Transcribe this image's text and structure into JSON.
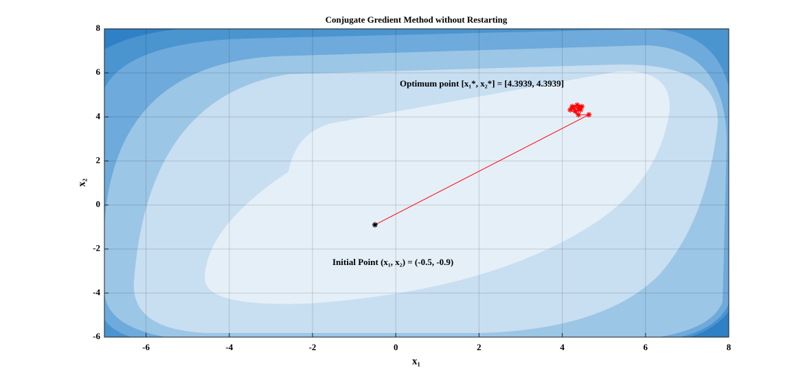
{
  "chart_data": {
    "type": "line",
    "title": "Conjugate Gredient Method without Restarting",
    "xlabel": "x₁",
    "ylabel": "x₂",
    "xlim": [
      -7,
      8
    ],
    "ylim": [
      -6,
      8
    ],
    "xticks": [
      -6,
      -4,
      -2,
      0,
      2,
      4,
      6,
      8
    ],
    "yticks": [
      -6,
      -4,
      -2,
      0,
      2,
      4,
      6,
      8
    ],
    "grid": true,
    "series": [
      {
        "color": "#ff0000",
        "start_color": "#000000",
        "x": [
          -0.5,
          4.64,
          4.39,
          4.19,
          4.24,
          4.36,
          4.47,
          4.44,
          4.32,
          4.27,
          4.41,
          4.3939
        ],
        "y": [
          -0.9,
          4.1,
          4.1,
          4.32,
          4.47,
          4.54,
          4.47,
          4.32,
          4.26,
          4.41,
          4.44,
          4.3939
        ]
      }
    ],
    "annotations": [
      "Optimum point [x₁*,  x₂*] = [4.3939, 4.3939]",
      "Initial Point (x₁,  x₂) = (-0.5,  -0.9)"
    ]
  }
}
